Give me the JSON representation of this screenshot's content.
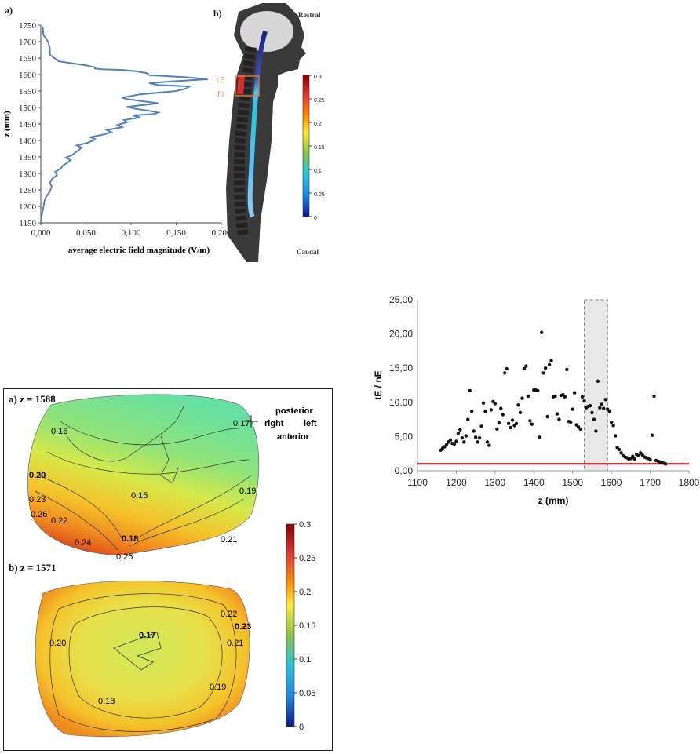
{
  "fig_a": {
    "panel_label": "a)",
    "ylabel": "z (mm)",
    "xlabel": "average electric field magnitude (V/m)",
    "yticks": [
      "1150",
      "1200",
      "1250",
      "1300",
      "1350",
      "1400",
      "1450",
      "1500",
      "1550",
      "1600",
      "1650",
      "1700",
      "1750"
    ],
    "xticks": [
      "0,000",
      "0,050",
      "0,100",
      "0,150",
      "0,200"
    ],
    "line_color": "#4f81bd"
  },
  "fig_b": {
    "panel_label": "b)",
    "top_label": "Rostral",
    "bottom_label": "Caudal",
    "seg_top": "C5",
    "seg_bottom": "T1",
    "colorbar_ticks": [
      "0.3",
      "0.25",
      "0.2",
      "0.15",
      "0.1",
      "0.05",
      "0"
    ]
  },
  "fig_c": {
    "panel_a_label": "a)",
    "panel_a_z": "z = 1588",
    "panel_b_label": "b)",
    "panel_b_z": "z = 1571",
    "orientation": {
      "posterior": "posterior",
      "anterior": "anterior",
      "right": "right",
      "left": "left"
    },
    "contours_a": [
      "0.16",
      "0.17",
      "0.15",
      "0.20",
      "0.19",
      "0.23",
      "0.26",
      "0.22",
      "0.18",
      "0.24",
      "0.21",
      "0.25"
    ],
    "contours_b": [
      "0.22",
      "0.23",
      "0.17",
      "0.20",
      "0.21",
      "0.19",
      "0.18"
    ],
    "colorbar_ticks": [
      "0.3",
      "0.25",
      "0.2",
      "0.15",
      "0.1",
      "0.05",
      "0"
    ]
  },
  "chart_data": [
    {
      "type": "line",
      "x_label": "average electric field magnitude (V/m)",
      "y_label": "z (mm)",
      "xlim": [
        0,
        0.2
      ],
      "ylim": [
        1150,
        1750
      ],
      "series": [
        {
          "x": [
            0.0,
            0.001,
            0.002,
            0.003,
            0.004,
            0.006,
            0.01,
            0.012,
            0.01,
            0.013,
            0.018,
            0.016,
            0.022,
            0.025,
            0.03,
            0.033,
            0.028,
            0.035,
            0.038,
            0.042,
            0.045,
            0.04,
            0.052,
            0.058,
            0.06,
            0.055,
            0.07,
            0.078,
            0.073,
            0.09,
            0.085,
            0.095,
            0.092,
            0.11,
            0.102,
            0.125,
            0.13,
            0.12,
            0.105,
            0.095,
            0.115,
            0.13,
            0.115,
            0.105,
            0.095,
            0.09,
            0.1,
            0.11,
            0.13,
            0.15,
            0.16,
            0.165,
            0.13,
            0.12,
            0.15,
            0.185,
            0.16,
            0.12,
            0.118,
            0.105,
            0.09,
            0.068,
            0.06,
            0.06,
            0.05,
            0.02,
            0.01,
            0.01,
            0.008,
            0.003,
            0.002
          ],
          "y": [
            1155,
            1170,
            1185,
            1200,
            1215,
            1230,
            1245,
            1260,
            1272,
            1285,
            1295,
            1305,
            1315,
            1325,
            1333,
            1340,
            1348,
            1356,
            1363,
            1370,
            1378,
            1385,
            1393,
            1400,
            1405,
            1410,
            1418,
            1425,
            1432,
            1440,
            1447,
            1455,
            1462,
            1470,
            1476,
            1480,
            1485,
            1490,
            1496,
            1502,
            1508,
            1513,
            1518,
            1522,
            1526,
            1530,
            1535,
            1540,
            1545,
            1550,
            1557,
            1564,
            1568,
            1574,
            1580,
            1586,
            1592,
            1598,
            1604,
            1610,
            1614,
            1616,
            1618,
            1622,
            1628,
            1640,
            1660,
            1680,
            1700,
            1720,
            1745
          ]
        }
      ]
    },
    {
      "type": "scatter",
      "x_label": "z (mm)",
      "y_label": "tE / nE",
      "xlim": [
        1100,
        1800
      ],
      "ylim": [
        0,
        25
      ],
      "xticks": [
        "1100",
        "1200",
        "1300",
        "1400",
        "1500",
        "1600",
        "1700",
        "1800"
      ],
      "yticks": [
        "0,00",
        "5,00",
        "10,00",
        "15,00",
        "20,00",
        "25,00"
      ],
      "threshold": 1.0,
      "highlight_range": [
        1530,
        1590
      ],
      "threshold_color": "#c00000",
      "series": [
        {
          "x": [
            1160,
            1165,
            1170,
            1175,
            1180,
            1185,
            1190,
            1195,
            1200,
            1205,
            1210,
            1215,
            1220,
            1225,
            1230,
            1235,
            1240,
            1245,
            1250,
            1255,
            1260,
            1265,
            1270,
            1275,
            1280,
            1285,
            1290,
            1295,
            1300,
            1305,
            1310,
            1315,
            1320,
            1325,
            1330,
            1335,
            1340,
            1345,
            1350,
            1355,
            1360,
            1365,
            1370,
            1375,
            1380,
            1385,
            1390,
            1395,
            1400,
            1405,
            1410,
            1415,
            1420,
            1425,
            1430,
            1435,
            1440,
            1445,
            1450,
            1455,
            1460,
            1465,
            1470,
            1475,
            1480,
            1485,
            1490,
            1495,
            1500,
            1505,
            1510,
            1515,
            1520,
            1525,
            1530,
            1535,
            1540,
            1545,
            1550,
            1555,
            1560,
            1565,
            1570,
            1575,
            1580,
            1585,
            1590,
            1595,
            1600,
            1605,
            1610,
            1615,
            1620,
            1625,
            1630,
            1635,
            1640,
            1645,
            1650,
            1655,
            1660,
            1665,
            1670,
            1675,
            1680,
            1685,
            1690,
            1695,
            1700,
            1705,
            1710,
            1715,
            1720,
            1725,
            1730,
            1735,
            1740
          ],
          "y": [
            3.0,
            3.3,
            3.5,
            3.8,
            4.2,
            4.5,
            4.0,
            3.9,
            4.3,
            5.5,
            6.0,
            4.8,
            4.2,
            5.1,
            7.5,
            11.7,
            8.7,
            5.8,
            4.9,
            4.2,
            4.8,
            6.5,
            9.9,
            8.7,
            4.2,
            3.7,
            8.9,
            10.1,
            9.8,
            6.1,
            7.0,
            9.1,
            8.2,
            14.3,
            14.9,
            6.9,
            6.3,
            7.4,
            6.6,
            6.9,
            9.6,
            8.5,
            10.6,
            14.9,
            15.3,
            10.9,
            7.3,
            6.8,
            11.8,
            11.8,
            11.7,
            4.9,
            20.2,
            14.3,
            15.0,
            7.9,
            15.5,
            16.1,
            10.8,
            10.9,
            8.3,
            7.5,
            11.0,
            11.1,
            10.8,
            14.8,
            7.2,
            7.1,
            9.0,
            11.4,
            6.7,
            6.4,
            6.1,
            10.8,
            10.2,
            9.2,
            9.4,
            9.5,
            8.5,
            7.5,
            5.8,
            13.1,
            9.2,
            9.7,
            9.1,
            10.4,
            9.0,
            8.7,
            7.1,
            6.6,
            5.1,
            3.4,
            3.1,
            2.6,
            2.2,
            2.0,
            1.9,
            1.7,
            1.8,
            2.1,
            1.7,
            2.4,
            2.2,
            2.6,
            2.3,
            2.0,
            1.9,
            1.8,
            1.6,
            5.2,
            10.9,
            1.5,
            1.4,
            1.3,
            1.2,
            1.1,
            1.0
          ]
        }
      ]
    }
  ]
}
